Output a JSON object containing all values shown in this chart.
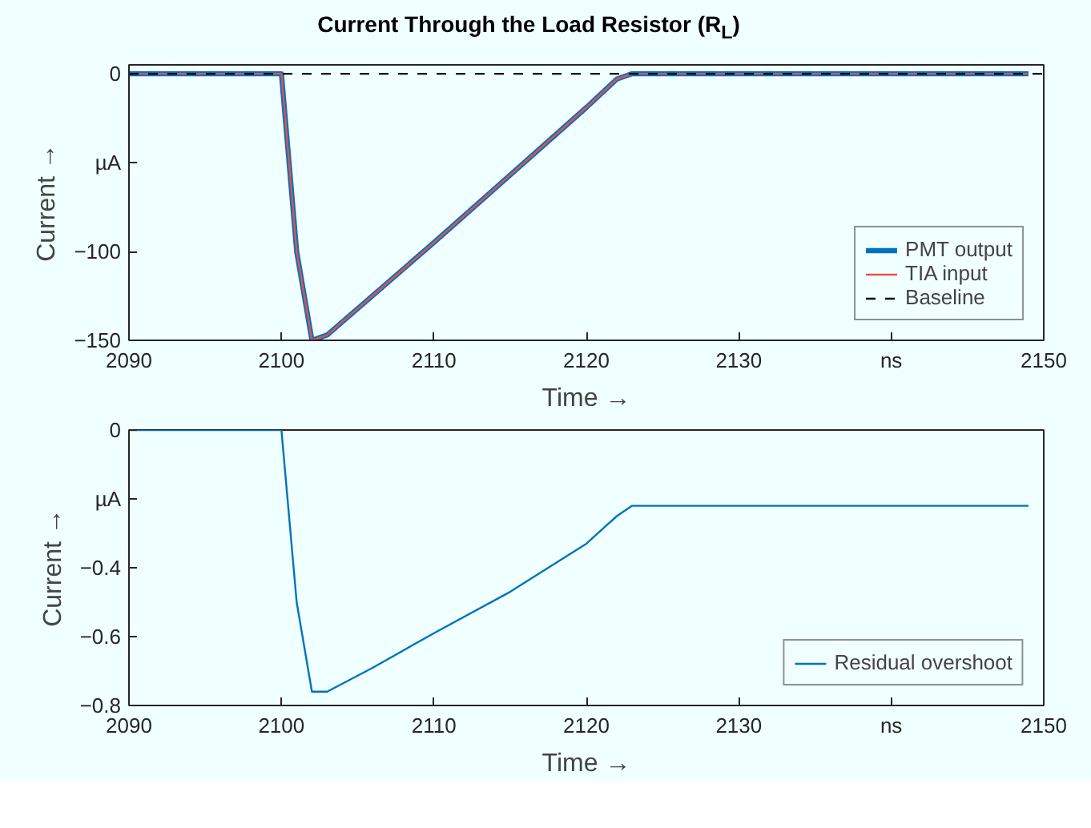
{
  "chart_data": [
    {
      "type": "line",
      "title": "Current Through the Load Resistor (R$_{L}$)",
      "xlabel": "Time →",
      "ylabel": "Current →",
      "x": [
        2090,
        2100,
        2101,
        2102,
        2103,
        2110,
        2115,
        2120,
        2122,
        2123,
        2130,
        2140,
        2149
      ],
      "series": [
        {
          "name": "PMT output",
          "color": "#0072bd",
          "values": [
            0,
            0,
            -100,
            -150,
            -147,
            -95,
            -57,
            -19,
            -3,
            0,
            0,
            0,
            0
          ]
        },
        {
          "name": "TIA input",
          "color": "#e8504a",
          "values": [
            0,
            0,
            -100,
            -150,
            -147,
            -95,
            -57,
            -19,
            -3,
            0,
            0,
            0,
            0
          ]
        }
      ],
      "ref_lines": [
        {
          "axis": "y",
          "value": 0,
          "label": "Baseline",
          "color": "#000000",
          "line_style": "dashed"
        }
      ],
      "xlim": [
        2090,
        2150
      ],
      "xticks": [
        2090,
        2100,
        2110,
        2120,
        2130,
        {
          "value": 2140,
          "label": "ns"
        },
        2150
      ],
      "ylim": [
        -150,
        5
      ],
      "yticks": [
        -150,
        -100,
        {
          "value": -50,
          "label": "µA"
        },
        0
      ],
      "grid": false,
      "legend": "bottom right"
    },
    {
      "type": "line",
      "xlabel": "Time →",
      "ylabel": "Current →",
      "x": [
        2090,
        2100,
        2101,
        2102,
        2103,
        2106,
        2110,
        2115,
        2120,
        2122,
        2123,
        2130,
        2140,
        2149
      ],
      "series": [
        {
          "name": "Residual overshoot",
          "color": "#0072bd",
          "values": [
            0,
            0,
            -0.5,
            -0.76,
            -0.76,
            -0.69,
            -0.59,
            -0.47,
            -0.33,
            -0.25,
            -0.22,
            -0.22,
            -0.22,
            -0.22
          ]
        }
      ],
      "xlim": [
        2090,
        2150
      ],
      "xticks": [
        2090,
        2100,
        2110,
        2120,
        2130,
        {
          "value": 2140,
          "label": "ns"
        },
        2150
      ],
      "ylim": [
        -0.8,
        0
      ],
      "yticks": [
        -0.8,
        -0.6,
        -0.4,
        {
          "value": -0.2,
          "label": "µA"
        },
        0
      ],
      "grid": false,
      "legend": "bottom right"
    }
  ]
}
